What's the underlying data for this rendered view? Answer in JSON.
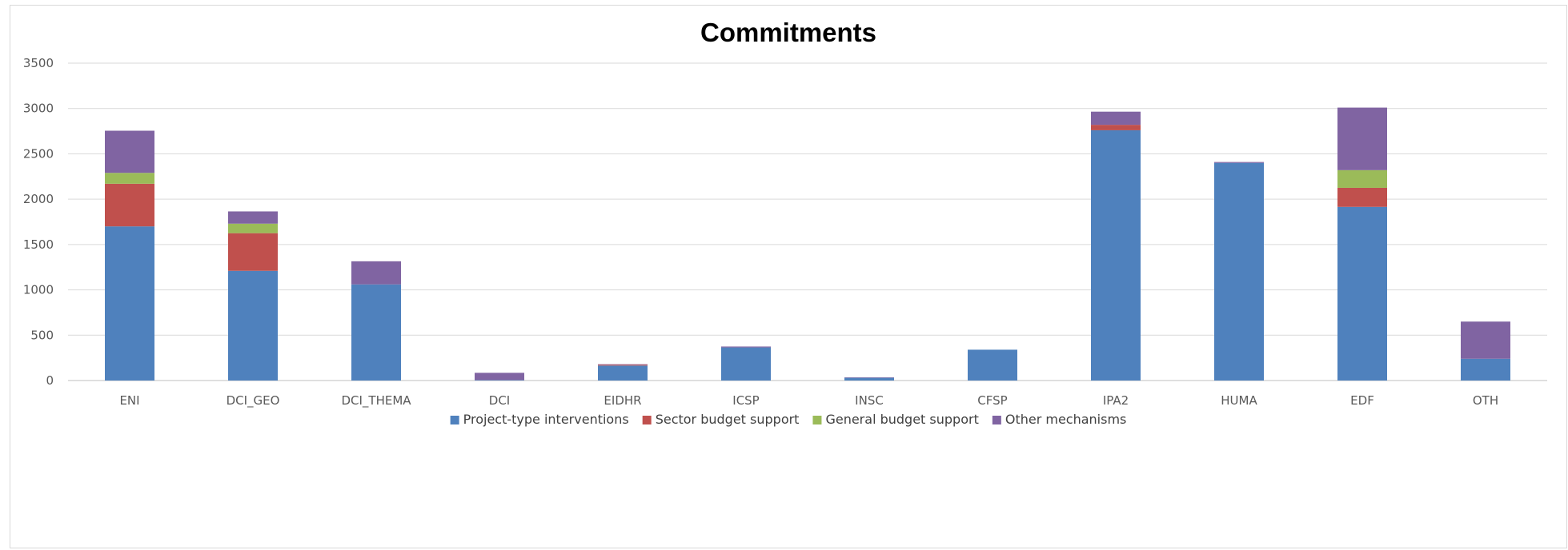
{
  "chart_data": {
    "type": "bar",
    "stacked": true,
    "title": "Commitments",
    "xlabel": "",
    "ylabel": "",
    "ylim": [
      0,
      3500
    ],
    "yticks": [
      0,
      500,
      1000,
      1500,
      2000,
      2500,
      3000,
      3500
    ],
    "grid": true,
    "legend_position": "bottom",
    "categories": [
      "ENI",
      "DCI_GEO",
      "DCI_THEMA",
      "DCI",
      "EIDHR",
      "ICSP",
      "INSC",
      "CFSP",
      "IPA2",
      "HUMA",
      "EDF",
      "OTH"
    ],
    "series": [
      {
        "name": "Project-type interventions",
        "color": "#4f81bd",
        "values": [
          1700,
          1210,
          1060,
          5,
          165,
          365,
          30,
          340,
          2760,
          2400,
          1915,
          240
        ]
      },
      {
        "name": "Sector budget support",
        "color": "#c0504d",
        "values": [
          470,
          415,
          0,
          0,
          10,
          0,
          0,
          0,
          60,
          0,
          210,
          0
        ]
      },
      {
        "name": "General budget support",
        "color": "#9bbb59",
        "values": [
          120,
          105,
          0,
          0,
          0,
          0,
          0,
          0,
          0,
          0,
          195,
          0
        ]
      },
      {
        "name": "Other mechanisms",
        "color": "#8064a2",
        "values": [
          465,
          135,
          255,
          80,
          5,
          10,
          5,
          0,
          145,
          10,
          690,
          410
        ]
      }
    ]
  }
}
